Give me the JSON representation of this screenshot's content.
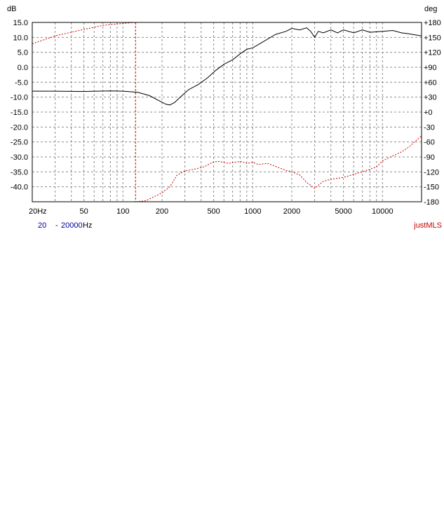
{
  "chart_data": {
    "type": "line",
    "left_axis_label": "dB",
    "right_axis_label": "deg",
    "x_scale": "log",
    "xlim": [
      20,
      20000
    ],
    "ylim_left": [
      -45,
      15
    ],
    "ylim_right": [
      -180,
      180
    ],
    "grid": true,
    "x_ticks": [
      {
        "v": 20,
        "label": "20Hz"
      },
      {
        "v": 50,
        "label": "50"
      },
      {
        "v": 100,
        "label": "100"
      },
      {
        "v": 200,
        "label": "200"
      },
      {
        "v": 500,
        "label": "500"
      },
      {
        "v": 1000,
        "label": "1000"
      },
      {
        "v": 2000,
        "label": "2000"
      },
      {
        "v": 5000,
        "label": "5000"
      },
      {
        "v": 10000,
        "label": "10000"
      }
    ],
    "y_ticks_left": [
      {
        "v": 15,
        "label": "15.0"
      },
      {
        "v": 10,
        "label": "10.0"
      },
      {
        "v": 5,
        "label": "5.0"
      },
      {
        "v": 0,
        "label": "0.0"
      },
      {
        "v": -5,
        "label": "-5.0"
      },
      {
        "v": -10,
        "label": "-10.0"
      },
      {
        "v": -15,
        "label": "-15.0"
      },
      {
        "v": -20,
        "label": "-20.0"
      },
      {
        "v": -25,
        "label": "-25.0"
      },
      {
        "v": -30,
        "label": "-30.0"
      },
      {
        "v": -35,
        "label": "-35.0"
      },
      {
        "v": -40,
        "label": "-40.0"
      }
    ],
    "y_ticks_right": [
      {
        "v": 180,
        "label": "+180"
      },
      {
        "v": 150,
        "label": "+150"
      },
      {
        "v": 120,
        "label": "+120"
      },
      {
        "v": 90,
        "label": "+90"
      },
      {
        "v": 60,
        "label": "+60"
      },
      {
        "v": 30,
        "label": "+30"
      },
      {
        "v": 0,
        "label": "+0"
      },
      {
        "v": -30,
        "label": "-30"
      },
      {
        "v": -60,
        "label": "-60"
      },
      {
        "v": -90,
        "label": "-90"
      },
      {
        "v": -120,
        "label": "-120"
      },
      {
        "v": -150,
        "label": "-150"
      },
      {
        "v": -180,
        "label": "-180"
      }
    ],
    "marker_frequency": 125,
    "range": {
      "start": "20",
      "dash": "-",
      "end": "20000",
      "unit": "Hz"
    },
    "software": "justMLS",
    "colors": {
      "magnitude": "#000000",
      "phase": "#cc0000",
      "range_text": "#000099",
      "software": "#cc0000",
      "grid": "#8c8c8c"
    },
    "series": [
      {
        "axis": "left",
        "points": [
          [
            20,
            -8
          ],
          [
            30,
            -8
          ],
          [
            50,
            -8.1
          ],
          [
            80,
            -7.9
          ],
          [
            100,
            -8
          ],
          [
            130,
            -8.4
          ],
          [
            160,
            -9.5
          ],
          [
            190,
            -11.2
          ],
          [
            215,
            -12.4
          ],
          [
            230,
            -12.6
          ],
          [
            250,
            -11.8
          ],
          [
            280,
            -9.8
          ],
          [
            320,
            -7.5
          ],
          [
            380,
            -5.8
          ],
          [
            450,
            -3.5
          ],
          [
            520,
            -1
          ],
          [
            600,
            1
          ],
          [
            700,
            2.5
          ],
          [
            800,
            4.5
          ],
          [
            900,
            6
          ],
          [
            1000,
            6.5
          ],
          [
            1200,
            8.5
          ],
          [
            1500,
            11
          ],
          [
            1800,
            12
          ],
          [
            2000,
            13
          ],
          [
            2300,
            12.5
          ],
          [
            2600,
            13.2
          ],
          [
            2800,
            12
          ],
          [
            3000,
            10
          ],
          [
            3200,
            12
          ],
          [
            3500,
            11.5
          ],
          [
            4000,
            12.5
          ],
          [
            4500,
            11.5
          ],
          [
            5000,
            12.5
          ],
          [
            6000,
            11.5
          ],
          [
            7000,
            12.5
          ],
          [
            8000,
            11.7
          ],
          [
            10000,
            12
          ],
          [
            12000,
            12.3
          ],
          [
            14000,
            11.5
          ],
          [
            16000,
            11.2
          ],
          [
            18000,
            10.8
          ],
          [
            20000,
            10.5
          ]
        ]
      },
      {
        "axis": "right",
        "points": [
          [
            20,
            137
          ],
          [
            30,
            153
          ],
          [
            50,
            166
          ],
          [
            70,
            174
          ],
          [
            100,
            178
          ],
          [
            124,
            180
          ],
          [
            126,
            -180
          ],
          [
            150,
            -178
          ],
          [
            200,
            -162
          ],
          [
            230,
            -150
          ],
          [
            260,
            -127
          ],
          [
            300,
            -118
          ],
          [
            350,
            -115
          ],
          [
            420,
            -110
          ],
          [
            500,
            -100
          ],
          [
            550,
            -99
          ],
          [
            650,
            -103
          ],
          [
            800,
            -99
          ],
          [
            900,
            -103
          ],
          [
            1000,
            -101
          ],
          [
            1100,
            -105
          ],
          [
            1300,
            -103
          ],
          [
            1500,
            -109
          ],
          [
            1800,
            -117
          ],
          [
            2000,
            -120
          ],
          [
            2300,
            -126
          ],
          [
            2600,
            -141
          ],
          [
            3000,
            -153
          ],
          [
            3500,
            -139
          ],
          [
            4000,
            -135
          ],
          [
            5000,
            -131
          ],
          [
            6000,
            -125
          ],
          [
            7000,
            -120
          ],
          [
            8000,
            -115
          ],
          [
            9000,
            -110
          ],
          [
            10000,
            -98
          ],
          [
            12000,
            -88
          ],
          [
            14000,
            -80
          ],
          [
            16000,
            -70
          ],
          [
            18000,
            -58
          ],
          [
            20000,
            -48
          ]
        ]
      }
    ]
  }
}
